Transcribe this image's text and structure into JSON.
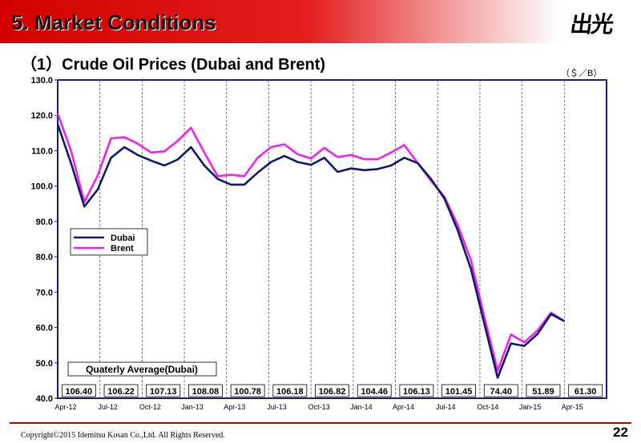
{
  "header": {
    "title": "5. Market Conditions",
    "logo_text": "出光"
  },
  "subtitle": "（1）Crude Oil Prices (Dubai and Brent)",
  "unit_label": "（＄／B）",
  "footer": {
    "copyright": "Copyright©2015 Idemitsu Kosan Co.,Ltd. All Rights Reserved.",
    "page_number": "22"
  },
  "chart_data": {
    "type": "line",
    "ylim": [
      40,
      130
    ],
    "yticks": [
      "40.0",
      "50.0",
      "60.0",
      "70.0",
      "80.0",
      "90.0",
      "100.0",
      "110.0",
      "120.0",
      "130.0"
    ],
    "x_tick_labels": [
      "Apr-12",
      "Jul-12",
      "Oct-12",
      "Jan-13",
      "Apr-13",
      "Jul-13",
      "Oct-13",
      "Jan-14",
      "Apr-14",
      "Jul-14",
      "Oct-14",
      "Jan-15",
      "Apr-15"
    ],
    "x_tick_interval_weeks": 12,
    "grid": "dashed vertical at quarter boundaries",
    "legend_placement": "left",
    "series": [
      {
        "name": "Dubai",
        "color": "#0d1a6b",
        "values": [
          117.5,
          106.5,
          94.2,
          99.0,
          108.0,
          111.0,
          108.8,
          107.2,
          105.8,
          107.5,
          111.0,
          105.8,
          102.0,
          100.4,
          100.4,
          103.8,
          106.8,
          108.5,
          106.8,
          106.0,
          108.0,
          104.0,
          105.0,
          104.5,
          104.8,
          105.8,
          108.0,
          106.5,
          102.0,
          96.5,
          87.5,
          76.5,
          61.0,
          45.8,
          55.5,
          54.8,
          58.2,
          63.8,
          61.8
        ]
      },
      {
        "name": "Brent",
        "color": "#ee22ee",
        "values": [
          120.5,
          110.0,
          95.5,
          103.0,
          113.5,
          113.8,
          112.0,
          109.5,
          109.8,
          112.8,
          116.5,
          109.5,
          102.8,
          103.2,
          102.8,
          108.0,
          111.0,
          111.8,
          109.0,
          107.8,
          110.8,
          108.2,
          108.8,
          107.6,
          107.6,
          109.5,
          111.6,
          106.5,
          101.5,
          97.0,
          89.0,
          79.0,
          63.0,
          47.8,
          58.0,
          55.8,
          59.2,
          64.2,
          61.8
        ]
      }
    ],
    "annotation": "Quaterly Average(Dubai)",
    "quarterly_averages": [
      "106.40",
      "106.22",
      "107.13",
      "108.08",
      "100.78",
      "106.18",
      "106.82",
      "104.46",
      "106.13",
      "101.45",
      "74.40",
      "51.89",
      "61.30"
    ]
  }
}
